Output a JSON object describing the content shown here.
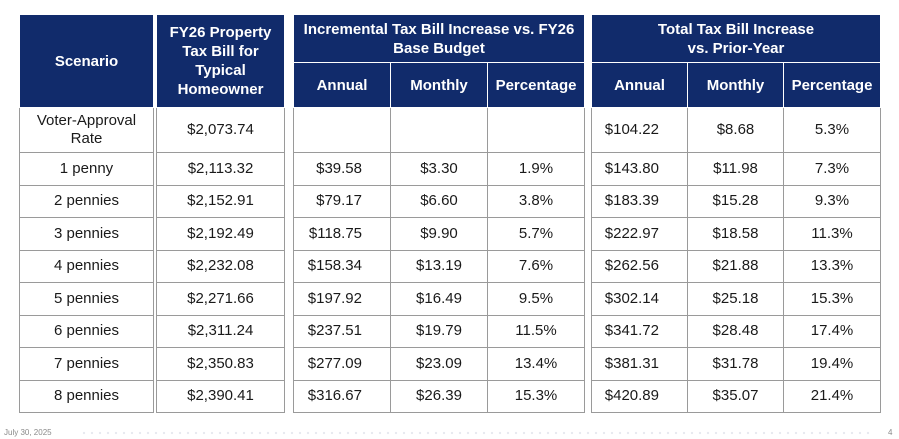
{
  "headers": {
    "scenario": "Scenario",
    "fy26": [
      "FY26 Property",
      "Tax Bill for",
      "Typical",
      "Homeowner"
    ],
    "incremental": [
      "Incremental Tax Bill Increase vs. FY26",
      "Base Budget"
    ],
    "total": [
      "Total Tax Bill Increase",
      "vs. Prior-Year"
    ],
    "sub": {
      "annual": "Annual",
      "monthly": "Monthly",
      "percentage": "Percentage"
    }
  },
  "rows": [
    {
      "scenario": [
        "Voter-Approval",
        "Rate"
      ],
      "fy26": "$2,073.74",
      "inc_annual": "",
      "inc_monthly": "",
      "inc_pct": "",
      "tot_annual": "$104.22",
      "tot_monthly": "$8.68",
      "tot_pct": "5.3%"
    },
    {
      "scenario": [
        "1 penny"
      ],
      "fy26": "$2,113.32",
      "inc_annual": "$39.58",
      "inc_monthly": "$3.30",
      "inc_pct": "1.9%",
      "tot_annual": "$143.80",
      "tot_monthly": "$11.98",
      "tot_pct": "7.3%"
    },
    {
      "scenario": [
        "2 pennies"
      ],
      "fy26": "$2,152.91",
      "inc_annual": "$79.17",
      "inc_monthly": "$6.60",
      "inc_pct": "3.8%",
      "tot_annual": "$183.39",
      "tot_monthly": "$15.28",
      "tot_pct": "9.3%"
    },
    {
      "scenario": [
        "3 pennies"
      ],
      "fy26": "$2,192.49",
      "inc_annual": "$118.75",
      "inc_monthly": "$9.90",
      "inc_pct": "5.7%",
      "tot_annual": "$222.97",
      "tot_monthly": "$18.58",
      "tot_pct": "11.3%"
    },
    {
      "scenario": [
        "4 pennies"
      ],
      "fy26": "$2,232.08",
      "inc_annual": "$158.34",
      "inc_monthly": "$13.19",
      "inc_pct": "7.6%",
      "tot_annual": "$262.56",
      "tot_monthly": "$21.88",
      "tot_pct": "13.3%"
    },
    {
      "scenario": [
        "5 pennies"
      ],
      "fy26": "$2,271.66",
      "inc_annual": "$197.92",
      "inc_monthly": "$16.49",
      "inc_pct": "9.5%",
      "tot_annual": "$302.14",
      "tot_monthly": "$25.18",
      "tot_pct": "15.3%"
    },
    {
      "scenario": [
        "6 pennies"
      ],
      "fy26": "$2,311.24",
      "inc_annual": "$237.51",
      "inc_monthly": "$19.79",
      "inc_pct": "11.5%",
      "tot_annual": "$341.72",
      "tot_monthly": "$28.48",
      "tot_pct": "17.4%"
    },
    {
      "scenario": [
        "7 pennies"
      ],
      "fy26": "$2,350.83",
      "inc_annual": "$277.09",
      "inc_monthly": "$23.09",
      "inc_pct": "13.4%",
      "tot_annual": "$381.31",
      "tot_monthly": "$31.78",
      "tot_pct": "19.4%"
    },
    {
      "scenario": [
        "8 pennies"
      ],
      "fy26": "$2,390.41",
      "inc_annual": "$316.67",
      "inc_monthly": "$26.39",
      "inc_pct": "15.3%",
      "tot_annual": "$420.89",
      "tot_monthly": "$35.07",
      "tot_pct": "21.4%"
    }
  ],
  "footer": {
    "date": "July 30, 2025",
    "page": "4"
  },
  "colors": {
    "header_bg": "#112b6b",
    "header_text": "#ffffff",
    "border": "#9a9a9a"
  }
}
